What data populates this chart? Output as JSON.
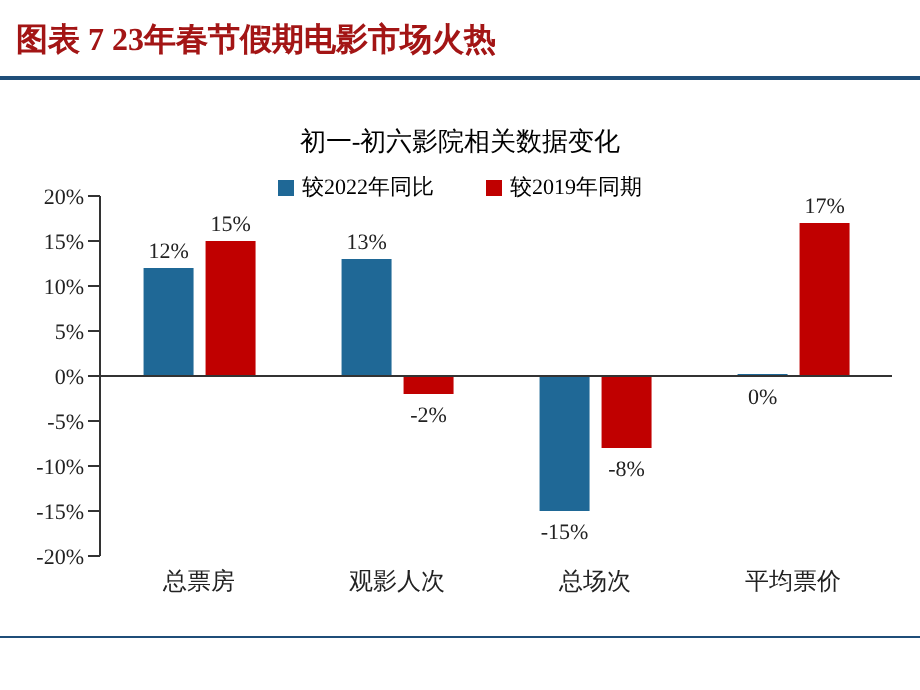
{
  "chart_data": {
    "type": "bar",
    "title": "图表 7 23年春节假期电影市场火热",
    "subtitle": "初一-初六影院相关数据变化",
    "categories": [
      "总票房",
      "观影人次",
      "总场次",
      "平均票价"
    ],
    "series": [
      {
        "name": "较2022年同比",
        "color": "#1f6896",
        "values": [
          12,
          13,
          -15,
          0
        ],
        "value_labels": [
          "12%",
          "13%",
          "-15%",
          "0%"
        ]
      },
      {
        "name": "较2019年同期",
        "color": "#c00000",
        "values": [
          15,
          -2,
          -8,
          17
        ],
        "value_labels": [
          "15%",
          "-2%",
          "-8%",
          "17%"
        ]
      }
    ],
    "ylim": [
      -20,
      20
    ],
    "yticks": [
      {
        "value": -20,
        "label": "-20%"
      },
      {
        "value": -15,
        "label": "-15%"
      },
      {
        "value": -10,
        "label": "-10%"
      },
      {
        "value": -5,
        "label": "-5%"
      },
      {
        "value": 0,
        "label": "0%"
      },
      {
        "value": 5,
        "label": "5%"
      },
      {
        "value": 10,
        "label": "10%"
      },
      {
        "value": 15,
        "label": "15%"
      },
      {
        "value": 20,
        "label": "20%"
      }
    ],
    "legend": "top"
  }
}
